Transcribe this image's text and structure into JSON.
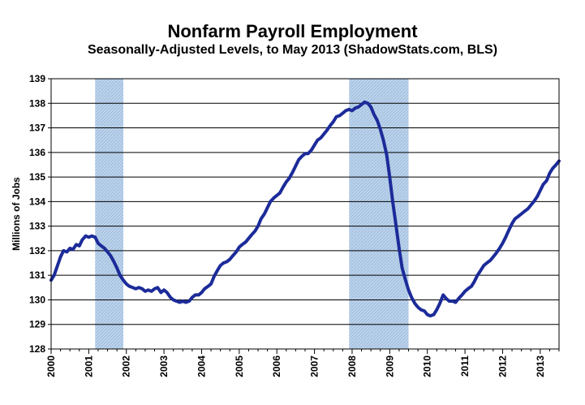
{
  "chart_data": {
    "type": "line",
    "title": "Nonfarm Payroll Employment",
    "subtitle": "Seasonally-Adjusted Levels, to May 2013 (ShadowStats.com, BLS)",
    "xlabel": "",
    "ylabel": "Millions of Jobs",
    "xlim": [
      2000.0,
      2013.5
    ],
    "ylim": [
      128,
      139
    ],
    "y_ticks": [
      128,
      129,
      130,
      131,
      132,
      133,
      134,
      135,
      136,
      137,
      138,
      139
    ],
    "x_ticks": [
      "2000",
      "2001",
      "2002",
      "2003",
      "2004",
      "2005",
      "2006",
      "2007",
      "2008",
      "2009",
      "2010",
      "2011",
      "2012",
      "2013"
    ],
    "grid": "horizontal",
    "legend": "none",
    "colors": {
      "line": "#1c2b99",
      "recession": "#bcd3ea",
      "recession_hatch": "#9fbde0",
      "grid": "#000000"
    },
    "recessions": [
      {
        "start": 2001.17,
        "end": 2001.92
      },
      {
        "start": 2007.92,
        "end": 2009.5
      }
    ],
    "series": [
      {
        "points": [
          [
            2000.0,
            130.8
          ],
          [
            2000.08,
            131.0
          ],
          [
            2000.17,
            131.4
          ],
          [
            2000.25,
            131.75
          ],
          [
            2000.33,
            132.0
          ],
          [
            2000.42,
            131.95
          ],
          [
            2000.5,
            132.1
          ],
          [
            2000.58,
            132.05
          ],
          [
            2000.67,
            132.25
          ],
          [
            2000.75,
            132.2
          ],
          [
            2000.83,
            132.45
          ],
          [
            2000.92,
            132.6
          ],
          [
            2001.0,
            132.55
          ],
          [
            2001.08,
            132.6
          ],
          [
            2001.17,
            132.55
          ],
          [
            2001.25,
            132.3
          ],
          [
            2001.33,
            132.2
          ],
          [
            2001.42,
            132.1
          ],
          [
            2001.5,
            131.95
          ],
          [
            2001.58,
            131.8
          ],
          [
            2001.67,
            131.55
          ],
          [
            2001.75,
            131.3
          ],
          [
            2001.83,
            131.0
          ],
          [
            2001.92,
            130.8
          ],
          [
            2002.0,
            130.65
          ],
          [
            2002.08,
            130.55
          ],
          [
            2002.17,
            130.5
          ],
          [
            2002.25,
            130.45
          ],
          [
            2002.33,
            130.5
          ],
          [
            2002.42,
            130.45
          ],
          [
            2002.5,
            130.35
          ],
          [
            2002.58,
            130.4
          ],
          [
            2002.67,
            130.35
          ],
          [
            2002.75,
            130.45
          ],
          [
            2002.83,
            130.5
          ],
          [
            2002.92,
            130.3
          ],
          [
            2003.0,
            130.4
          ],
          [
            2003.08,
            130.3
          ],
          [
            2003.17,
            130.1
          ],
          [
            2003.25,
            130.0
          ],
          [
            2003.33,
            129.95
          ],
          [
            2003.42,
            129.9
          ],
          [
            2003.5,
            129.95
          ],
          [
            2003.58,
            129.9
          ],
          [
            2003.67,
            129.95
          ],
          [
            2003.75,
            130.1
          ],
          [
            2003.83,
            130.2
          ],
          [
            2003.92,
            130.2
          ],
          [
            2004.0,
            130.3
          ],
          [
            2004.08,
            130.45
          ],
          [
            2004.17,
            130.55
          ],
          [
            2004.25,
            130.65
          ],
          [
            2004.33,
            130.95
          ],
          [
            2004.42,
            131.2
          ],
          [
            2004.5,
            131.4
          ],
          [
            2004.58,
            131.5
          ],
          [
            2004.67,
            131.55
          ],
          [
            2004.75,
            131.65
          ],
          [
            2004.83,
            131.8
          ],
          [
            2004.92,
            131.95
          ],
          [
            2005.0,
            132.15
          ],
          [
            2005.08,
            132.25
          ],
          [
            2005.17,
            132.35
          ],
          [
            2005.25,
            132.5
          ],
          [
            2005.33,
            132.65
          ],
          [
            2005.42,
            132.8
          ],
          [
            2005.5,
            133.0
          ],
          [
            2005.58,
            133.3
          ],
          [
            2005.67,
            133.5
          ],
          [
            2005.75,
            133.75
          ],
          [
            2005.83,
            134.0
          ],
          [
            2005.92,
            134.15
          ],
          [
            2006.0,
            134.25
          ],
          [
            2006.08,
            134.35
          ],
          [
            2006.17,
            134.6
          ],
          [
            2006.25,
            134.8
          ],
          [
            2006.33,
            134.95
          ],
          [
            2006.42,
            135.2
          ],
          [
            2006.5,
            135.45
          ],
          [
            2006.58,
            135.7
          ],
          [
            2006.67,
            135.85
          ],
          [
            2006.75,
            135.95
          ],
          [
            2006.83,
            135.95
          ],
          [
            2006.92,
            136.1
          ],
          [
            2007.0,
            136.3
          ],
          [
            2007.08,
            136.5
          ],
          [
            2007.17,
            136.6
          ],
          [
            2007.25,
            136.75
          ],
          [
            2007.33,
            136.9
          ],
          [
            2007.42,
            137.1
          ],
          [
            2007.5,
            137.25
          ],
          [
            2007.58,
            137.45
          ],
          [
            2007.67,
            137.5
          ],
          [
            2007.75,
            137.6
          ],
          [
            2007.83,
            137.7
          ],
          [
            2007.92,
            137.75
          ],
          [
            2008.0,
            137.7
          ],
          [
            2008.08,
            137.8
          ],
          [
            2008.17,
            137.85
          ],
          [
            2008.25,
            137.95
          ],
          [
            2008.33,
            138.05
          ],
          [
            2008.42,
            138.0
          ],
          [
            2008.5,
            137.85
          ],
          [
            2008.58,
            137.55
          ],
          [
            2008.67,
            137.3
          ],
          [
            2008.75,
            136.95
          ],
          [
            2008.83,
            136.5
          ],
          [
            2008.92,
            135.9
          ],
          [
            2009.0,
            135.0
          ],
          [
            2009.08,
            134.0
          ],
          [
            2009.17,
            133.0
          ],
          [
            2009.25,
            132.1
          ],
          [
            2009.33,
            131.3
          ],
          [
            2009.42,
            130.8
          ],
          [
            2009.5,
            130.4
          ],
          [
            2009.58,
            130.1
          ],
          [
            2009.67,
            129.85
          ],
          [
            2009.75,
            129.7
          ],
          [
            2009.83,
            129.6
          ],
          [
            2009.92,
            129.55
          ],
          [
            2010.0,
            129.4
          ],
          [
            2010.08,
            129.35
          ],
          [
            2010.17,
            129.4
          ],
          [
            2010.25,
            129.6
          ],
          [
            2010.33,
            129.85
          ],
          [
            2010.42,
            130.2
          ],
          [
            2010.5,
            130.05
          ],
          [
            2010.58,
            129.95
          ],
          [
            2010.67,
            129.95
          ],
          [
            2010.75,
            129.9
          ],
          [
            2010.83,
            130.05
          ],
          [
            2010.92,
            130.2
          ],
          [
            2011.0,
            130.35
          ],
          [
            2011.08,
            130.45
          ],
          [
            2011.17,
            130.55
          ],
          [
            2011.25,
            130.75
          ],
          [
            2011.33,
            131.0
          ],
          [
            2011.42,
            131.2
          ],
          [
            2011.5,
            131.4
          ],
          [
            2011.58,
            131.5
          ],
          [
            2011.67,
            131.6
          ],
          [
            2011.75,
            131.75
          ],
          [
            2011.83,
            131.9
          ],
          [
            2011.92,
            132.1
          ],
          [
            2012.0,
            132.3
          ],
          [
            2012.08,
            132.55
          ],
          [
            2012.17,
            132.85
          ],
          [
            2012.25,
            133.1
          ],
          [
            2012.33,
            133.3
          ],
          [
            2012.42,
            133.4
          ],
          [
            2012.5,
            133.5
          ],
          [
            2012.58,
            133.6
          ],
          [
            2012.67,
            133.7
          ],
          [
            2012.75,
            133.85
          ],
          [
            2012.83,
            134.0
          ],
          [
            2012.92,
            134.2
          ],
          [
            2013.0,
            134.45
          ],
          [
            2013.08,
            134.7
          ],
          [
            2013.17,
            134.85
          ],
          [
            2013.25,
            135.15
          ],
          [
            2013.33,
            135.35
          ],
          [
            2013.42,
            135.5
          ],
          [
            2013.5,
            135.65
          ]
        ]
      }
    ]
  }
}
